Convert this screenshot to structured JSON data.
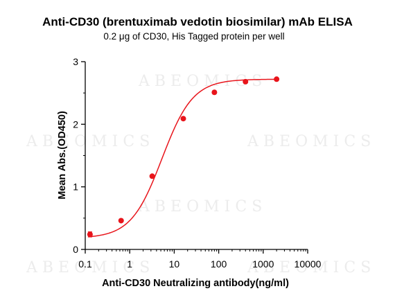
{
  "chart_data": {
    "type": "scatter",
    "title": "Anti-CD30 (brentuximab vedotin biosimilar) mAb ELISA",
    "subtitle": "0.2 μg of CD30, His Tagged protein per well",
    "xlabel": "Anti-CD30 Neutralizing antibody(ng/ml)",
    "ylabel": "Mean Abs.(OD450)",
    "x_scale": "log",
    "xlim": [
      0.1,
      10000
    ],
    "ylim": [
      0,
      3
    ],
    "x_ticks": [
      "0.1",
      "1",
      "10",
      "100",
      "1000",
      "10000"
    ],
    "y_ticks": [
      "0",
      "1",
      "2",
      "3"
    ],
    "grid": false,
    "series": [
      {
        "x": [
          0.128,
          0.64,
          3.2,
          16,
          80,
          400,
          2000
        ],
        "y": [
          0.24,
          0.46,
          1.17,
          2.09,
          2.51,
          2.68,
          2.72
        ],
        "error": [
          0.04,
          0.01,
          0.01,
          0.01,
          0.01,
          0.01,
          0.01
        ]
      }
    ],
    "fit": {
      "type": "4PL",
      "bottom": 0.18,
      "top": 2.72,
      "ec50": 5.3,
      "hill": 1.25
    },
    "color": "#e8141b"
  },
  "watermark": "ABEOMICS"
}
